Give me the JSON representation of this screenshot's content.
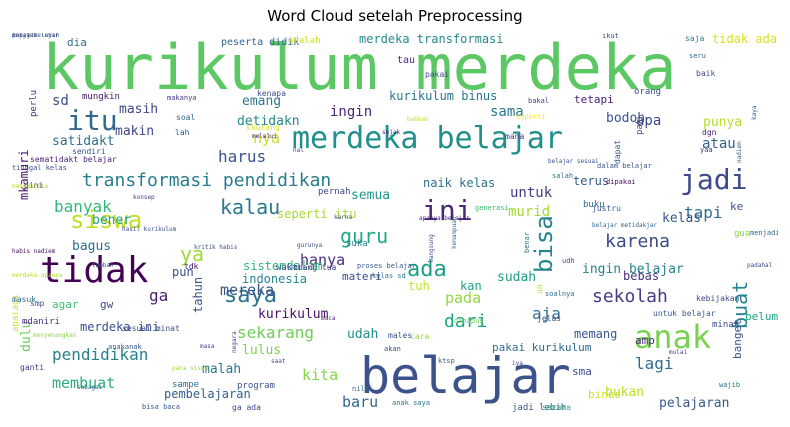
{
  "chart_data": {
    "type": "wordcloud",
    "title": "Word Cloud setelah Preprocessing",
    "words": [
      {
        "text": "kurikulum merdeka",
        "size": 62,
        "color": "#5cc863"
      },
      {
        "text": "belajar",
        "size": 50,
        "color": "#3b528b"
      },
      {
        "text": "merdeka belajar",
        "size": 30,
        "color": "#21908d"
      },
      {
        "text": "tidak",
        "size": 36,
        "color": "#440154"
      },
      {
        "text": "anak",
        "size": 32,
        "color": "#7ad151"
      },
      {
        "text": "itu",
        "size": 28,
        "color": "#31688e"
      },
      {
        "text": "ini",
        "size": 28,
        "color": "#482878"
      },
      {
        "text": "jadi",
        "size": 28,
        "color": "#3e4a89"
      },
      {
        "text": "siswa",
        "size": 24,
        "color": "#bddf26"
      },
      {
        "text": "bisa",
        "size": 24,
        "color": "#26828e"
      },
      {
        "text": "saya",
        "size": 22,
        "color": "#2c728e"
      },
      {
        "text": "ada",
        "size": 22,
        "color": "#1f9e89"
      },
      {
        "text": "kalau",
        "size": 20,
        "color": "#2a788e"
      },
      {
        "text": "guru",
        "size": 20,
        "color": "#22a884"
      },
      {
        "text": "transformasi pendidikan",
        "size": 18,
        "color": "#287d8e"
      },
      {
        "text": "buat",
        "size": 20,
        "color": "#25858e"
      },
      {
        "text": "ya",
        "size": 20,
        "color": "#a0da39"
      },
      {
        "text": "karena",
        "size": 18,
        "color": "#3e4989"
      },
      {
        "text": "sekolah",
        "size": 18,
        "color": "#433e85"
      },
      {
        "text": "dari",
        "size": 18,
        "color": "#1fa187"
      },
      {
        "text": "banyak",
        "size": 16,
        "color": "#35b779"
      },
      {
        "text": "tapi",
        "size": 16,
        "color": "#2d708e"
      },
      {
        "text": "harus",
        "size": 16,
        "color": "#39558c"
      },
      {
        "text": "sekarang",
        "size": 16,
        "color": "#6ece58"
      },
      {
        "text": "pendidikan",
        "size": 16,
        "color": "#26828e"
      },
      {
        "text": "aja",
        "size": 16,
        "color": "#2e6e8e"
      },
      {
        "text": "lagi",
        "size": 16,
        "color": "#2f6c8e"
      },
      {
        "text": "membuat",
        "size": 15,
        "color": "#29af7f"
      },
      {
        "text": "mereka",
        "size": 15,
        "color": "#3b528b"
      },
      {
        "text": "kita",
        "size": 15,
        "color": "#86d549"
      },
      {
        "text": "baru",
        "size": 15,
        "color": "#31688e"
      },
      {
        "text": "ga",
        "size": 16,
        "color": "#481f70"
      },
      {
        "text": "hanya",
        "size": 15,
        "color": "#472d7b"
      },
      {
        "text": "pada",
        "size": 15,
        "color": "#95d840"
      },
      {
        "text": "murid",
        "size": 14,
        "color": "#a5db36"
      },
      {
        "text": "sama",
        "size": 14,
        "color": "#2a788e"
      },
      {
        "text": "ingin",
        "size": 14,
        "color": "#482576"
      },
      {
        "text": "untuk",
        "size": 14,
        "color": "#443a83"
      },
      {
        "text": "apa",
        "size": 14,
        "color": "#3f4788"
      },
      {
        "text": "atau",
        "size": 14,
        "color": "#33638d"
      },
      {
        "text": "satidakt",
        "size": 13,
        "color": "#2d708e"
      },
      {
        "text": "detidakn",
        "size": 13,
        "color": "#23898e"
      },
      {
        "text": "punya",
        "size": 13,
        "color": "#b5de2b"
      },
      {
        "text": "nya",
        "size": 15,
        "color": "#c8e020"
      },
      {
        "text": "emang",
        "size": 13,
        "color": "#2a788e"
      },
      {
        "text": "sd",
        "size": 14,
        "color": "#3e4a89"
      },
      {
        "text": "masih",
        "size": 13,
        "color": "#404688"
      },
      {
        "text": "makin",
        "size": 13,
        "color": "#414487"
      },
      {
        "text": "bodoh",
        "size": 13,
        "color": "#3a538b"
      },
      {
        "text": "semua",
        "size": 13,
        "color": "#1f988b"
      },
      {
        "text": "bener",
        "size": 13,
        "color": "#1f9f88"
      },
      {
        "text": "lulus",
        "size": 13,
        "color": "#7fd34e"
      },
      {
        "text": "malah",
        "size": 13,
        "color": "#2b758e"
      },
      {
        "text": "udah",
        "size": 13,
        "color": "#228c8d"
      },
      {
        "text": "memang",
        "size": 12,
        "color": "#3a548c"
      },
      {
        "text": "bagus",
        "size": 13,
        "color": "#2d718e"
      },
      {
        "text": "kelas",
        "size": 13,
        "color": "#38598c"
      },
      {
        "text": "sudah",
        "size": 13,
        "color": "#1e9c89"
      },
      {
        "text": "dulu",
        "size": 13,
        "color": "#67cc5c"
      },
      {
        "text": "kurikulum",
        "size": 13,
        "color": "#471063"
      },
      {
        "text": "pelajaran",
        "size": 13,
        "color": "#375a8c"
      },
      {
        "text": "pembelajaran",
        "size": 12,
        "color": "#34618d"
      },
      {
        "text": "bukan",
        "size": 13,
        "color": "#bade28"
      },
      {
        "text": "tahun",
        "size": 12,
        "color": "#3b528b"
      },
      {
        "text": "ingin belajar",
        "size": 13,
        "color": "#25848e"
      },
      {
        "text": "naik kelas",
        "size": 12,
        "color": "#2c728e"
      },
      {
        "text": "merdeka transformasi",
        "size": 12,
        "color": "#238a8d"
      },
      {
        "text": "kurikulum binus",
        "size": 12,
        "color": "#2a768e"
      },
      {
        "text": "seperti itu",
        "size": 12,
        "color": "#a8db34"
      },
      {
        "text": "merdeka ini",
        "size": 12,
        "color": "#3b518b"
      },
      {
        "text": "pakai kurikulum",
        "size": 11,
        "color": "#2e6d8e"
      },
      {
        "text": "tidak ada",
        "size": 12,
        "color": "#d8e219"
      },
      {
        "text": "mkamuri",
        "size": 12,
        "color": "#481b6d"
      },
      {
        "text": "sistemdalam",
        "size": 12,
        "color": "#2fb47c"
      },
      {
        "text": "indonesia",
        "size": 12,
        "color": "#24878e"
      },
      {
        "text": "materi",
        "size": 11,
        "color": "#3d4d8a"
      },
      {
        "text": "pun",
        "size": 12,
        "color": "#3c4f8a"
      },
      {
        "text": "tuh",
        "size": 12,
        "color": "#c2df23"
      },
      {
        "text": "kan",
        "size": 12,
        "color": "#1fa088"
      },
      {
        "text": "bebas",
        "size": 12,
        "color": "#46337f"
      },
      {
        "text": "terus",
        "size": 12,
        "color": "#38598c"
      },
      {
        "text": "binus",
        "size": 11,
        "color": "#cae11f"
      },
      {
        "text": "dia",
        "size": 11,
        "color": "#2e6f8e"
      },
      {
        "text": "peserta didik",
        "size": 10,
        "color": "#33638d"
      },
      {
        "text": "adalah",
        "size": 9,
        "color": "#cae11f"
      },
      {
        "text": "mdaniri",
        "size": 9,
        "color": "#46327e"
      },
      {
        "text": "agar",
        "size": 11,
        "color": "#44bf70"
      },
      {
        "text": "gw",
        "size": 11,
        "color": "#3d4e8a"
      },
      {
        "text": "sma",
        "size": 11,
        "color": "#3e4a89"
      },
      {
        "text": "amp",
        "size": 11,
        "color": "#482677"
      },
      {
        "text": "banget",
        "size": 11,
        "color": "#3b528b"
      },
      {
        "text": "tetapi",
        "size": 11,
        "color": "#482173"
      },
      {
        "text": "perlu",
        "size": 9,
        "color": "#46307e"
      },
      {
        "text": "mungkin",
        "size": 9,
        "color": "#471365"
      },
      {
        "text": "makanya",
        "size": 7,
        "color": "#433d84"
      },
      {
        "text": "kenapa",
        "size": 8,
        "color": "#3e4c8a"
      },
      {
        "text": "pakai",
        "size": 8,
        "color": "#3d4e8a"
      },
      {
        "text": "tau",
        "size": 10,
        "color": "#472c7a"
      },
      {
        "text": "soal",
        "size": 8,
        "color": "#31678e"
      },
      {
        "text": "lah",
        "size": 8,
        "color": "#345e8d"
      },
      {
        "text": "sendiri",
        "size": 8,
        "color": "#3b528b"
      },
      {
        "text": "sematidakt belajar",
        "size": 8,
        "color": "#482475"
      },
      {
        "text": "gini",
        "size": 8,
        "color": "#46337f"
      },
      {
        "text": "tdk",
        "size": 8,
        "color": "#471164"
      },
      {
        "text": "kritik habis",
        "size": 6,
        "color": "#3e4a89"
      },
      {
        "text": "waktu",
        "size": 9,
        "color": "#365c8d"
      },
      {
        "text": "orang tua",
        "size": 8,
        "color": "#453882"
      },
      {
        "text": "pernah",
        "size": 9,
        "color": "#3f4889"
      },
      {
        "text": "suka",
        "size": 9,
        "color": "#277f8e"
      },
      {
        "text": "apalagi",
        "size": 9,
        "color": "#d2e21b"
      },
      {
        "text": "masuk",
        "size": 8,
        "color": "#2d708e"
      },
      {
        "text": "smp",
        "size": 8,
        "color": "#3b528b"
      },
      {
        "text": "sesuai minat",
        "size": 8,
        "color": "#3d4e8a"
      },
      {
        "text": "anakanak",
        "size": 7,
        "color": "#375b8d"
      },
      {
        "text": "menyenangkan",
        "size": 6,
        "color": "#8bd646"
      },
      {
        "text": "ganti",
        "size": 8,
        "color": "#453781"
      },
      {
        "text": "sebagai",
        "size": 6,
        "color": "#31678e"
      },
      {
        "text": "para siswa",
        "size": 6,
        "color": "#a0da39"
      },
      {
        "text": "sampe",
        "size": 9,
        "color": "#2d718e"
      },
      {
        "text": "program",
        "size": 9,
        "color": "#3b528b"
      },
      {
        "text": "bisa baca",
        "size": 7,
        "color": "#365c8d"
      },
      {
        "text": "ga ada",
        "size": 8,
        "color": "#3e4989"
      },
      {
        "text": "anak saya",
        "size": 7,
        "color": "#2c738e"
      },
      {
        "text": "jadi lebih",
        "size": 9,
        "color": "#3a548c"
      },
      {
        "text": "secara",
        "size": 8,
        "color": "#2db27d"
      },
      {
        "text": "untuk belajar",
        "size": 8,
        "color": "#38598c"
      },
      {
        "text": "kebijakan",
        "size": 8,
        "color": "#3f4788"
      },
      {
        "text": "minat",
        "size": 9,
        "color": "#3d4d8a"
      },
      {
        "text": "padahal",
        "size": 6,
        "color": "#3e4a89"
      },
      {
        "text": "gua",
        "size": 9,
        "color": "#8bd646"
      },
      {
        "text": "menjadi",
        "size": 7,
        "color": "#31688e"
      },
      {
        "text": "yaa",
        "size": 7,
        "color": "#472f7d"
      },
      {
        "text": "dgn",
        "size": 8,
        "color": "#481a6c"
      },
      {
        "text": "saja",
        "size": 8,
        "color": "#287c8e"
      },
      {
        "text": "seru",
        "size": 7,
        "color": "#31688e"
      },
      {
        "text": "baik",
        "size": 8,
        "color": "#3e4c8a"
      },
      {
        "text": "ikut",
        "size": 7,
        "color": "#3b528b"
      },
      {
        "text": "seperti",
        "size": 7,
        "color": "#fde725"
      },
      {
        "text": "mana",
        "size": 8,
        "color": "#404588"
      },
      {
        "text": "bakal",
        "size": 7,
        "color": "#414287"
      },
      {
        "text": "bahkan",
        "size": 6,
        "color": "#bddf26"
      },
      {
        "text": "skurang",
        "size": 8,
        "color": "#dde318"
      },
      {
        "text": "melalui",
        "size": 6,
        "color": "#48186a"
      },
      {
        "text": "hal",
        "size": 6,
        "color": "#3b528b"
      },
      {
        "text": "sejak",
        "size": 6,
        "color": "#472e7c"
      },
      {
        "text": "dalam belajar",
        "size": 7,
        "color": "#39568c"
      },
      {
        "text": "dipakai",
        "size": 7,
        "color": "#46085c"
      },
      {
        "text": "salah",
        "size": 7,
        "color": "#2a788e"
      },
      {
        "text": "karna",
        "size": 6,
        "color": "#3e4c8a"
      },
      {
        "text": "generasi",
        "size": 7,
        "color": "#42be71"
      },
      {
        "text": "apanya belajar",
        "size": 6,
        "color": "#482576"
      },
      {
        "text": "belajar metidakjar",
        "size": 6,
        "color": "#31688e"
      },
      {
        "text": "proses belajar",
        "size": 7,
        "color": "#375b8d"
      },
      {
        "text": "kelas sd",
        "size": 7,
        "color": "#2a788e"
      },
      {
        "text": "soalnya",
        "size": 7,
        "color": "#2f6c8e"
      },
      {
        "text": "jelas",
        "size": 8,
        "color": "#3b528b"
      },
      {
        "text": "dihapus",
        "size": 7,
        "color": "#6ccd5a"
      },
      {
        "text": "cara",
        "size": 8,
        "color": "#9dd93b"
      },
      {
        "text": "males",
        "size": 8,
        "color": "#38598c"
      },
      {
        "text": "akan",
        "size": 7,
        "color": "#3d4d8a"
      },
      {
        "text": "ktsp",
        "size": 7,
        "color": "#34618d"
      },
      {
        "text": "iya",
        "size": 6,
        "color": "#404688"
      },
      {
        "text": "mulai",
        "size": 6,
        "color": "#433e85"
      },
      {
        "text": "masa",
        "size": 6,
        "color": "#3e4989"
      },
      {
        "text": "saat",
        "size": 6,
        "color": "#3f4788"
      },
      {
        "text": "nilai",
        "size": 7,
        "color": "#2e6d8e"
      },
      {
        "text": "wajib",
        "size": 7,
        "color": "#2c728e"
      },
      {
        "text": "baca",
        "size": 6,
        "color": "#482878"
      },
      {
        "text": "konsep",
        "size": 6,
        "color": "#433e85"
      },
      {
        "text": "tinggal kelas",
        "size": 7,
        "color": "#3b528b"
      },
      {
        "text": "matematika",
        "size": 6,
        "color": "#b5de2b"
      },
      {
        "text": "hasil kurikulum",
        "size": 6,
        "color": "#3b528b"
      },
      {
        "text": "merdeka apanya",
        "size": 6,
        "color": "#b2dd2d"
      },
      {
        "text": "habis nadiem",
        "size": 6,
        "color": "#471063"
      },
      {
        "text": "tambah",
        "size": 6,
        "color": "#3b528b"
      },
      {
        "text": "negara",
        "size": 6,
        "color": "#3f4788"
      },
      {
        "text": "kemampuan",
        "size": 6,
        "color": "#2c738e"
      },
      {
        "text": "langsung",
        "size": 6,
        "color": "#3b528b"
      },
      {
        "text": "gurunya",
        "size": 6,
        "color": "#3b528b"
      },
      {
        "text": "belajar sesuai",
        "size": 6,
        "color": "#3b528b"
      },
      {
        "text": "justru",
        "size": 8,
        "color": "#39568c"
      },
      {
        "text": "dapat",
        "size": 8,
        "color": "#3b528b"
      },
      {
        "text": "buku",
        "size": 9,
        "color": "#2e6f8e"
      },
      {
        "text": "pak",
        "size": 9,
        "color": "#3d4e8a"
      },
      {
        "text": "benar",
        "size": 7,
        "color": "#2b748e"
      },
      {
        "text": "un",
        "size": 8,
        "color": "#b2dd2d"
      },
      {
        "text": "ke",
        "size": 11,
        "color": "#3b528b"
      },
      {
        "text": "belum",
        "size": 11,
        "color": "#1fa287"
      },
      {
        "text": "orang",
        "size": 9,
        "color": "#3e4c8a"
      },
      {
        "text": "kaya",
        "size": 6,
        "color": "#3b528b"
      },
      {
        "text": "udh",
        "size": 7,
        "color": "#3b528b"
      },
      {
        "text": "nadiem",
        "size": 6,
        "color": "#3b528b"
      },
      {
        "text": "menjadi lebih",
        "size": 6,
        "color": "#3b528b"
      },
      {
        "text": "dapat belajar",
        "size": 6,
        "color": "#3b528b"
      },
      {
        "text": "pelajar",
        "size": 6,
        "color": "#3b528b"
      }
    ]
  }
}
